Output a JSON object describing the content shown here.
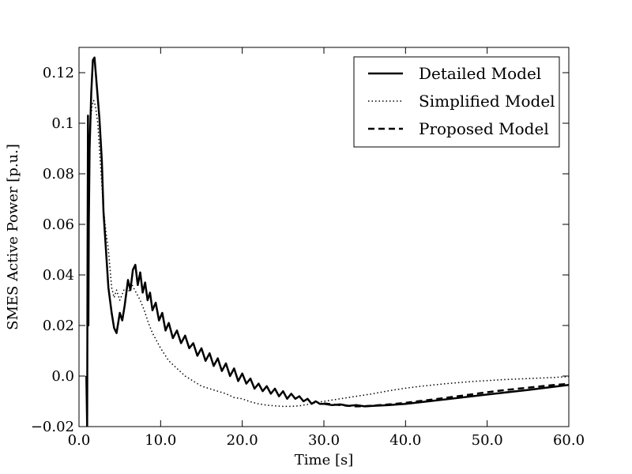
{
  "chart_data": {
    "type": "line",
    "title": "",
    "xlabel": "Time [s]",
    "ylabel": "SMES Active Power [p.u.]",
    "xlim": [
      0,
      60
    ],
    "ylim": [
      -0.02,
      0.13
    ],
    "grid": false,
    "legend_position": "top-right",
    "x_ticks": [
      0,
      10,
      20,
      30,
      40,
      50,
      60
    ],
    "x_tick_labels": [
      "0.0",
      "10.0",
      "20.0",
      "30.0",
      "40.0",
      "50.0",
      "60.0"
    ],
    "y_ticks": [
      -0.02,
      0,
      0.02,
      0.04,
      0.06,
      0.08,
      0.1,
      0.12
    ],
    "y_tick_labels": [
      "−0.02",
      "0.0",
      "0.02",
      "0.04",
      "0.06",
      "0.08",
      "0.1",
      "0.12"
    ],
    "series": [
      {
        "name": "Detailed Model",
        "style": "solid",
        "color": "#000000",
        "x": [
          0.9,
          1.0,
          1.05,
          1.1,
          1.15,
          1.2,
          1.3,
          1.5,
          1.7,
          1.9,
          2.0,
          2.2,
          2.5,
          2.8,
          3.0,
          3.3,
          3.6,
          4.0,
          4.3,
          4.6,
          5.0,
          5.3,
          5.6,
          6.0,
          6.3,
          6.6,
          6.9,
          7.2,
          7.5,
          7.8,
          8.1,
          8.4,
          8.7,
          9.0,
          9.4,
          9.8,
          10.2,
          10.6,
          11.0,
          11.5,
          12.0,
          12.5,
          13.0,
          13.5,
          14.0,
          14.5,
          15.0,
          15.5,
          16.0,
          16.5,
          17.0,
          17.5,
          18.0,
          18.5,
          19.0,
          19.5,
          20.0,
          20.5,
          21.0,
          21.5,
          22.0,
          22.5,
          23.0,
          23.5,
          24.0,
          24.5,
          25.0,
          25.5,
          26.0,
          26.5,
          27.0,
          27.5,
          28.0,
          28.5,
          29.0,
          29.5,
          30.0,
          31.0,
          32.0,
          33.0,
          34.0,
          35.0,
          36.0,
          38.0,
          40.0,
          45.0,
          50.0,
          55.0,
          60.0
        ],
        "y": [
          0,
          -0.02,
          0.05,
          0.103,
          0.02,
          0.06,
          0.09,
          0.112,
          0.125,
          0.126,
          0.122,
          0.114,
          0.102,
          0.085,
          0.065,
          0.05,
          0.035,
          0.025,
          0.019,
          0.017,
          0.025,
          0.022,
          0.028,
          0.038,
          0.034,
          0.042,
          0.044,
          0.036,
          0.041,
          0.033,
          0.037,
          0.03,
          0.033,
          0.026,
          0.029,
          0.022,
          0.025,
          0.018,
          0.021,
          0.015,
          0.018,
          0.013,
          0.016,
          0.011,
          0.013,
          0.008,
          0.011,
          0.006,
          0.009,
          0.004,
          0.007,
          0.002,
          0.005,
          0.0,
          0.003,
          -0.002,
          0.001,
          -0.003,
          -0.001,
          -0.005,
          -0.003,
          -0.006,
          -0.004,
          -0.007,
          -0.005,
          -0.008,
          -0.006,
          -0.009,
          -0.007,
          -0.009,
          -0.008,
          -0.01,
          -0.009,
          -0.011,
          -0.01,
          -0.011,
          -0.011,
          -0.0115,
          -0.0112,
          -0.0118,
          -0.0115,
          -0.012,
          -0.0118,
          -0.0115,
          -0.011,
          -0.0092,
          -0.0073,
          -0.0055,
          -0.0035
        ]
      },
      {
        "name": "Simplified Model",
        "style": "dotted",
        "color": "#000000",
        "x": [
          0.9,
          1.0,
          1.05,
          1.1,
          1.2,
          1.4,
          1.6,
          1.8,
          2.0,
          2.3,
          2.6,
          3.0,
          3.3,
          3.6,
          4.0,
          4.3,
          4.6,
          5.0,
          5.5,
          6.0,
          6.5,
          7.0,
          7.5,
          8.0,
          8.5,
          9.0,
          9.5,
          10.0,
          11.0,
          12.0,
          13.0,
          14.0,
          15.0,
          16.0,
          17.0,
          18.0,
          19.0,
          20.0,
          21.0,
          22.0,
          23.0,
          24.0,
          25.0,
          26.0,
          27.0,
          28.0,
          29.0,
          30.0,
          31.0,
          32.0,
          33.0,
          34.0,
          35.0,
          36.0,
          38.0,
          40.0,
          42.0,
          45.0,
          48.0,
          50.0,
          52.0,
          55.0,
          58.0,
          60.0
        ],
        "y": [
          0,
          -0.02,
          0.06,
          0.07,
          0.085,
          0.1,
          0.107,
          0.109,
          0.107,
          0.1,
          0.085,
          0.066,
          0.057,
          0.05,
          0.035,
          0.031,
          0.034,
          0.03,
          0.034,
          0.033,
          0.036,
          0.033,
          0.03,
          0.026,
          0.021,
          0.017,
          0.014,
          0.011,
          0.006,
          0.003,
          0.0,
          -0.002,
          -0.004,
          -0.005,
          -0.006,
          -0.007,
          -0.0085,
          -0.009,
          -0.0102,
          -0.011,
          -0.0115,
          -0.0118,
          -0.012,
          -0.012,
          -0.0118,
          -0.0112,
          -0.0105,
          -0.01,
          -0.0095,
          -0.009,
          -0.0085,
          -0.008,
          -0.0075,
          -0.007,
          -0.0058,
          -0.0048,
          -0.004,
          -0.003,
          -0.0022,
          -0.0018,
          -0.0014,
          -0.001,
          -0.0006,
          -0.0002
        ]
      },
      {
        "name": "Proposed Model",
        "style": "dashed",
        "color": "#000000",
        "x": [
          30.0,
          31.0,
          32.0,
          33.0,
          34.0,
          35.0,
          36.0,
          38.0,
          40.0,
          42.0,
          45.0,
          48.0,
          50.0,
          52.0,
          55.0,
          58.0,
          60.0
        ],
        "y": [
          -0.0108,
          -0.0112,
          -0.0115,
          -0.0118,
          -0.012,
          -0.0119,
          -0.0117,
          -0.0112,
          -0.0106,
          -0.0098,
          -0.0086,
          -0.0073,
          -0.0064,
          -0.0056,
          -0.0046,
          -0.0036,
          -0.0031
        ]
      }
    ]
  }
}
